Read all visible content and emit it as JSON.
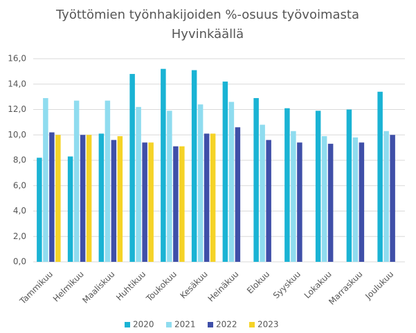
{
  "chart_data": {
    "type": "bar",
    "title": [
      "Työttömien työnhakijoiden %-osuus työvoimasta",
      "Hyvinkäällä"
    ],
    "categories": [
      "Tammikuu",
      "Helmikuu",
      "Maaliskuu",
      "Huhtikuu",
      "Toukokuu",
      "Kesäkuu",
      "Heinäkuu",
      "Elokuu",
      "Syyskuu",
      "Lokakuu",
      "Marraskuu",
      "Joulukuu"
    ],
    "series": [
      {
        "name": "2020",
        "color": "#1ab3d4",
        "values": [
          8.2,
          8.3,
          10.1,
          14.8,
          15.2,
          15.1,
          14.2,
          12.9,
          12.1,
          11.9,
          12.0,
          13.4
        ]
      },
      {
        "name": "2021",
        "color": "#8fdcef",
        "values": [
          12.9,
          12.7,
          12.7,
          12.2,
          11.9,
          12.4,
          12.6,
          10.8,
          10.3,
          9.9,
          9.8,
          10.3
        ]
      },
      {
        "name": "2022",
        "color": "#3f4fa8",
        "values": [
          10.2,
          10.0,
          9.6,
          9.4,
          9.1,
          10.1,
          10.6,
          9.6,
          9.4,
          9.3,
          9.4,
          10.0
        ]
      },
      {
        "name": "2023",
        "color": "#f5d327",
        "values": [
          10.0,
          10.0,
          9.9,
          9.4,
          9.1,
          10.1,
          null,
          null,
          null,
          null,
          null,
          null
        ]
      }
    ],
    "ylim": [
      0,
      16
    ],
    "yticks": [
      {
        "value": 0,
        "label": "0,0"
      },
      {
        "value": 2,
        "label": "2,0"
      },
      {
        "value": 4,
        "label": "4,0"
      },
      {
        "value": 6,
        "label": "6,0"
      },
      {
        "value": 8,
        "label": "8,0"
      },
      {
        "value": 10,
        "label": "10,0"
      },
      {
        "value": 12,
        "label": "12,0"
      },
      {
        "value": 14,
        "label": "14,0"
      },
      {
        "value": 16,
        "label": "16,0"
      }
    ],
    "grid": true,
    "legend": "bottom"
  }
}
